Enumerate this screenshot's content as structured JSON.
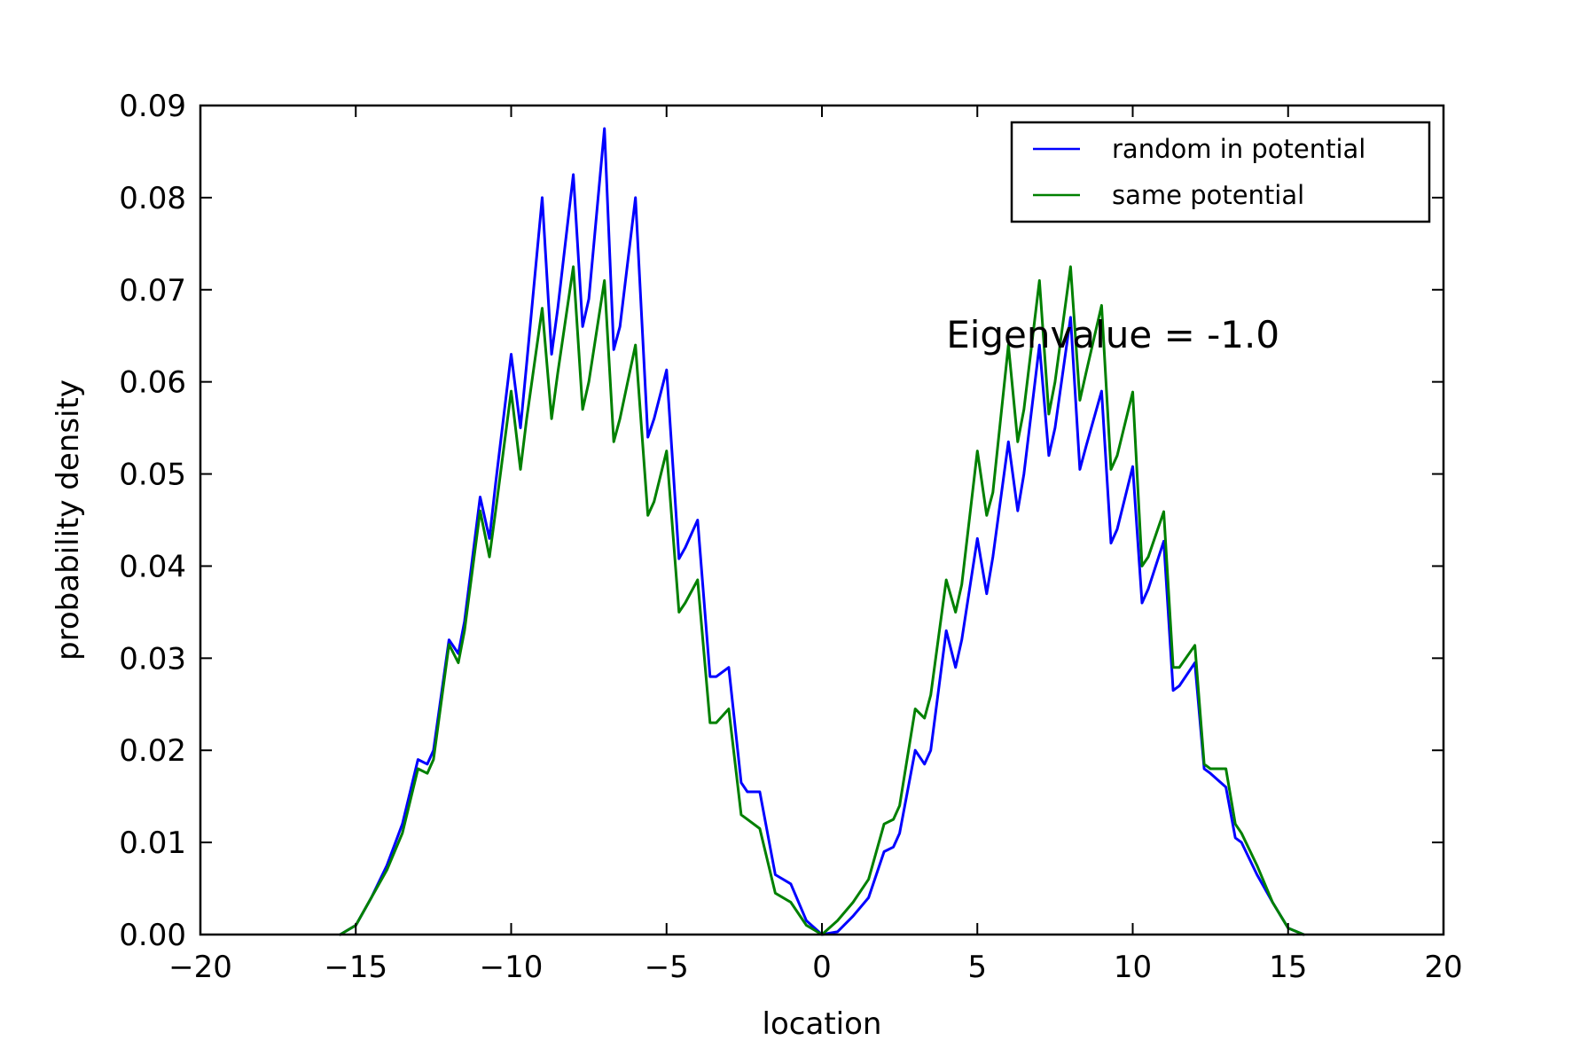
{
  "chart_data": {
    "type": "line",
    "title": "",
    "xlabel": "location",
    "ylabel": "probability density",
    "xlim": [
      -20,
      20
    ],
    "ylim": [
      0,
      0.09
    ],
    "grid": false,
    "legend_position": "top-right",
    "x_ticks": [
      -20,
      -15,
      -10,
      -5,
      0,
      5,
      10,
      15,
      20
    ],
    "x_tick_labels": [
      "−20",
      "−15",
      "−10",
      "−5",
      "0",
      "5",
      "10",
      "15",
      "20"
    ],
    "y_ticks": [
      0,
      0.01,
      0.02,
      0.03,
      0.04,
      0.05,
      0.06,
      0.07,
      0.08,
      0.09
    ],
    "y_tick_labels": [
      "0.00",
      "0.01",
      "0.02",
      "0.03",
      "0.04",
      "0.05",
      "0.06",
      "0.07",
      "0.08",
      "0.09"
    ],
    "annotations": [
      {
        "text": "Eigenvalue = -1.0",
        "x": 4.0,
        "y": 0.0637
      }
    ],
    "series": [
      {
        "name": "random in potential",
        "color": "#0000ff",
        "x": [
          -15.5,
          -15,
          -14.5,
          -14,
          -13.5,
          -13,
          -12.7,
          -12.5,
          -12,
          -11.7,
          -11.5,
          -11,
          -10.7,
          -10.5,
          -10,
          -9.7,
          -9.5,
          -9,
          -8.7,
          -8.5,
          -8,
          -7.7,
          -7.5,
          -7,
          -6.7,
          -6.5,
          -6,
          -5.6,
          -5.4,
          -5,
          -4.6,
          -4.4,
          -4,
          -3.6,
          -3.4,
          -3,
          -2.6,
          -2.4,
          -2,
          -1.5,
          -1,
          -0.5,
          0,
          0.5,
          1,
          1.5,
          2,
          2.3,
          2.5,
          3,
          3.3,
          3.5,
          4,
          4.3,
          4.5,
          5,
          5.3,
          5.5,
          6,
          6.3,
          6.5,
          7,
          7.3,
          7.5,
          8,
          8.3,
          8.5,
          9,
          9.3,
          9.5,
          10,
          10.3,
          10.5,
          11,
          11.3,
          11.5,
          12,
          12.3,
          12.5,
          13,
          13.3,
          13.5,
          14,
          14.5,
          15,
          15.5
        ],
        "y": [
          0,
          0.001,
          0.004,
          0.0075,
          0.012,
          0.019,
          0.0185,
          0.02,
          0.032,
          0.0305,
          0.034,
          0.0475,
          0.043,
          0.049,
          0.063,
          0.055,
          0.062,
          0.08,
          0.063,
          0.068,
          0.0825,
          0.066,
          0.069,
          0.0875,
          0.0635,
          0.066,
          0.08,
          0.054,
          0.056,
          0.0613,
          0.0408,
          0.042,
          0.045,
          0.028,
          0.028,
          0.029,
          0.0165,
          0.0155,
          0.0155,
          0.0065,
          0.0055,
          0.0015,
          0,
          0.0003,
          0.002,
          0.004,
          0.009,
          0.0095,
          0.011,
          0.02,
          0.0185,
          0.02,
          0.033,
          0.029,
          0.032,
          0.043,
          0.037,
          0.041,
          0.0535,
          0.046,
          0.05,
          0.064,
          0.052,
          0.055,
          0.067,
          0.0505,
          0.053,
          0.059,
          0.0425,
          0.044,
          0.0508,
          0.036,
          0.0375,
          0.0427,
          0.0265,
          0.027,
          0.0295,
          0.018,
          0.0175,
          0.016,
          0.0105,
          0.01,
          0.0065,
          0.0035,
          0.0007,
          0
        ]
      },
      {
        "name": "same potential",
        "color": "#008000",
        "x": [
          -15.5,
          -15,
          -14.5,
          -14,
          -13.5,
          -13,
          -12.7,
          -12.5,
          -12,
          -11.7,
          -11.5,
          -11,
          -10.7,
          -10.5,
          -10,
          -9.7,
          -9.5,
          -9,
          -8.7,
          -8.5,
          -8,
          -7.7,
          -7.5,
          -7,
          -6.7,
          -6.5,
          -6,
          -5.6,
          -5.4,
          -5,
          -4.6,
          -4.4,
          -4,
          -3.6,
          -3.4,
          -3,
          -2.6,
          -2.4,
          -2,
          -1.5,
          -1,
          -0.5,
          0,
          0.5,
          1,
          1.5,
          2,
          2.3,
          2.5,
          3,
          3.3,
          3.5,
          4,
          4.3,
          4.5,
          5,
          5.3,
          5.5,
          6,
          6.3,
          6.5,
          7,
          7.3,
          7.5,
          8,
          8.3,
          8.5,
          9,
          9.3,
          9.5,
          10,
          10.3,
          10.5,
          11,
          11.3,
          11.5,
          12,
          12.3,
          12.5,
          13,
          13.3,
          13.5,
          14,
          14.5,
          15,
          15.5
        ],
        "y": [
          0,
          0.001,
          0.004,
          0.007,
          0.011,
          0.018,
          0.0175,
          0.019,
          0.0315,
          0.0295,
          0.033,
          0.046,
          0.041,
          0.046,
          0.059,
          0.0505,
          0.056,
          0.068,
          0.056,
          0.061,
          0.0725,
          0.057,
          0.06,
          0.071,
          0.0535,
          0.056,
          0.064,
          0.0455,
          0.047,
          0.0525,
          0.035,
          0.036,
          0.0385,
          0.023,
          0.023,
          0.0245,
          0.013,
          0.0125,
          0.0115,
          0.0045,
          0.0035,
          0.001,
          0,
          0.0015,
          0.0035,
          0.006,
          0.012,
          0.0125,
          0.014,
          0.0245,
          0.0235,
          0.026,
          0.0385,
          0.035,
          0.038,
          0.0525,
          0.0455,
          0.048,
          0.064,
          0.0535,
          0.057,
          0.071,
          0.0565,
          0.06,
          0.0725,
          0.058,
          0.061,
          0.0683,
          0.0505,
          0.052,
          0.0589,
          0.04,
          0.041,
          0.0459,
          0.029,
          0.029,
          0.0314,
          0.0185,
          0.018,
          0.018,
          0.012,
          0.011,
          0.0075,
          0.0035,
          0.0007,
          0
        ]
      }
    ]
  }
}
